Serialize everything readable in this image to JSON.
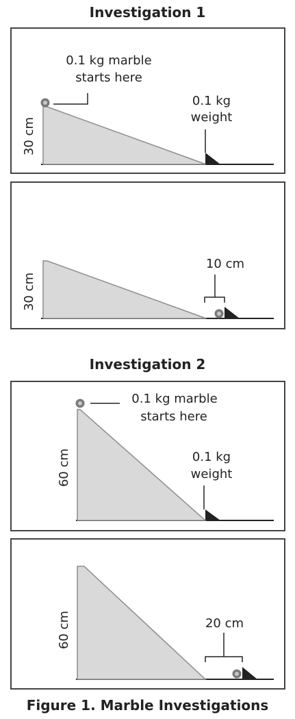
{
  "investigation1": {
    "title": "Investigation 1",
    "panel_start": {
      "marble_label_line1": "0.1 kg marble",
      "marble_label_line2": "starts here",
      "weight_label_line1": "0.1 kg",
      "weight_label_line2": "weight",
      "height_label": "30 cm"
    },
    "panel_end": {
      "height_label": "30 cm",
      "distance_label": "10 cm"
    }
  },
  "investigation2": {
    "title": "Investigation 2",
    "panel_start": {
      "marble_label_line1": "0.1 kg marble",
      "marble_label_line2": "starts here",
      "weight_label_line1": "0.1 kg",
      "weight_label_line2": "weight",
      "height_label": "60 cm"
    },
    "panel_end": {
      "height_label": "60 cm",
      "distance_label": "20 cm"
    }
  },
  "caption": "Figure 1. Marble Investigations",
  "colors": {
    "ramp_fill": "#d9d9d9",
    "ramp_stroke": "#8c8c8c",
    "weight_fill": "#222222",
    "ground": "#222222",
    "border": "#444444",
    "marble_outer": "#7a7a7a",
    "marble_inner": "#c8c8c8"
  }
}
